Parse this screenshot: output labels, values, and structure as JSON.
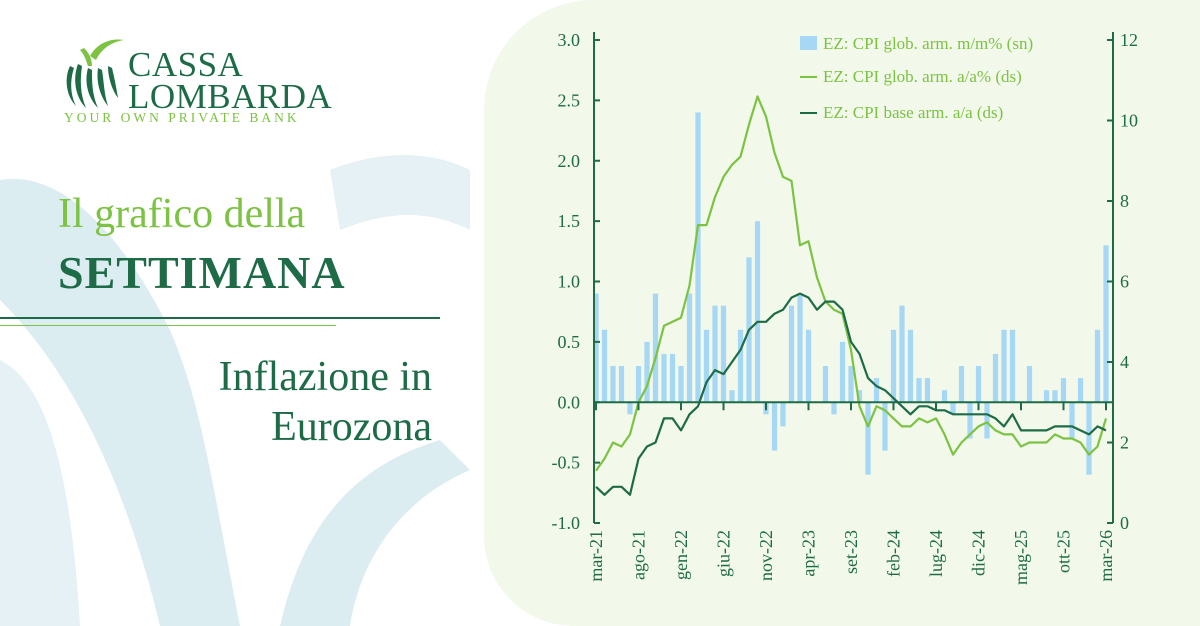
{
  "logo": {
    "name_line1": "CASSA",
    "name_line2": "LOMBARDA",
    "tagline": "YOUR OWN PRIVATE BANK"
  },
  "title": {
    "line1": "Il grafico della",
    "line2": "SETTIMANA",
    "subtitle_line1": "Inflazione in",
    "subtitle_line2": "Eurozona"
  },
  "colors": {
    "dark_green": "#1e6b47",
    "light_green": "#7cc243",
    "bar_blue": "#a6d8f5",
    "panel": "#f2f8ea"
  },
  "chart_data": {
    "type": "bar+line",
    "x": [
      "mar-21",
      "apr-21",
      "mag-21",
      "giu-21",
      "lug-21",
      "ago-21",
      "set-21",
      "ott-21",
      "nov-21",
      "dic-21",
      "gen-22",
      "feb-22",
      "mar-22",
      "apr-22",
      "mag-22",
      "giu-22",
      "lug-22",
      "ago-22",
      "set-22",
      "ott-22",
      "nov-22",
      "dic-22",
      "gen-23",
      "feb-23",
      "mar-23",
      "apr-23",
      "mag-23",
      "giu-23",
      "lug-23",
      "ago-23",
      "set-23",
      "ott-23",
      "nov-23",
      "dic-23",
      "gen-24",
      "feb-24",
      "mar-24",
      "apr-24",
      "mag-24",
      "giu-24",
      "lug-24",
      "ago-24",
      "set-24",
      "ott-24",
      "nov-24",
      "dic-24",
      "gen-25",
      "feb-25",
      "mar-25",
      "apr-25",
      "mag-25",
      "giu-25",
      "lug-25",
      "ago-25",
      "set-25",
      "ott-25",
      "nov-25",
      "dic-25",
      "gen-26",
      "feb-26",
      "mar-26"
    ],
    "x_tick_labels": [
      "mar-21",
      "ago-21",
      "gen-22",
      "giu-22",
      "nov-22",
      "apr-23",
      "set-23",
      "feb-24",
      "lug-24",
      "dic-24",
      "mag-25",
      "ott-25",
      "mar-26"
    ],
    "left_axis": {
      "ylim": [
        -1.0,
        3.0
      ],
      "ticks": [
        "3.0",
        "2.5",
        "2.0",
        "1.5",
        "1.0",
        "0.5",
        "0.0",
        "-0.5",
        "-1.0"
      ]
    },
    "right_axis": {
      "ylim": [
        0,
        12
      ],
      "ticks": [
        "12",
        "10",
        "8",
        "6",
        "4",
        "2",
        "0"
      ]
    },
    "series": [
      {
        "name": "EZ: CPI glob. arm. m/m% (sn)",
        "type": "bar",
        "axis": "left",
        "color": "#a6d8f5",
        "values": [
          0.9,
          0.6,
          0.3,
          0.3,
          -0.1,
          0.3,
          0.5,
          0.9,
          0.4,
          0.4,
          0.3,
          0.9,
          2.4,
          0.6,
          0.8,
          0.8,
          0.1,
          0.6,
          1.2,
          1.5,
          -0.1,
          -0.4,
          -0.2,
          0.8,
          0.9,
          0.6,
          0.0,
          0.3,
          -0.1,
          0.5,
          0.3,
          0.1,
          -0.6,
          0.2,
          -0.4,
          0.6,
          0.8,
          0.6,
          0.2,
          0.2,
          0.0,
          0.1,
          -0.1,
          0.3,
          -0.3,
          0.3,
          -0.3,
          0.4,
          0.6,
          0.6,
          0.0,
          0.3,
          0.0,
          0.1,
          0.1,
          0.2,
          -0.3,
          0.2,
          -0.6,
          0.6,
          1.3
        ]
      },
      {
        "name": "EZ: CPI glob. arm. a/a% (ds)",
        "type": "line",
        "axis": "right",
        "color": "#7cc243",
        "values": [
          1.3,
          1.6,
          2.0,
          1.9,
          2.2,
          3.0,
          3.4,
          4.1,
          4.9,
          5.0,
          5.1,
          5.9,
          7.4,
          7.4,
          8.1,
          8.6,
          8.9,
          9.1,
          9.9,
          10.6,
          10.1,
          9.2,
          8.6,
          8.5,
          6.9,
          7.0,
          6.1,
          5.5,
          5.3,
          5.2,
          4.3,
          2.9,
          2.4,
          2.9,
          2.8,
          2.6,
          2.4,
          2.4,
          2.6,
          2.5,
          2.6,
          2.2,
          1.7,
          2.0,
          2.2,
          2.4,
          2.5,
          2.3,
          2.2,
          2.2,
          1.9,
          2.0,
          2.0,
          2.0,
          2.2,
          2.1,
          2.1,
          2.0,
          1.7,
          1.9,
          2.6
        ]
      },
      {
        "name": "EZ: CPI base arm. a/a (ds)",
        "type": "line",
        "axis": "right",
        "color": "#1e6b47",
        "values": [
          0.9,
          0.7,
          0.9,
          0.9,
          0.7,
          1.6,
          1.9,
          2.0,
          2.6,
          2.6,
          2.3,
          2.7,
          2.9,
          3.5,
          3.8,
          3.7,
          4.0,
          4.3,
          4.8,
          5.0,
          5.0,
          5.2,
          5.3,
          5.6,
          5.7,
          5.6,
          5.3,
          5.5,
          5.5,
          5.3,
          4.5,
          4.2,
          3.6,
          3.4,
          3.3,
          3.1,
          2.9,
          2.7,
          2.9,
          2.9,
          2.8,
          2.8,
          2.7,
          2.7,
          2.7,
          2.7,
          2.7,
          2.6,
          2.4,
          2.7,
          2.3,
          2.3,
          2.3,
          2.3,
          2.4,
          2.4,
          2.4,
          2.3,
          2.2,
          2.4,
          2.3
        ]
      }
    ],
    "legend_position": "top-right"
  }
}
